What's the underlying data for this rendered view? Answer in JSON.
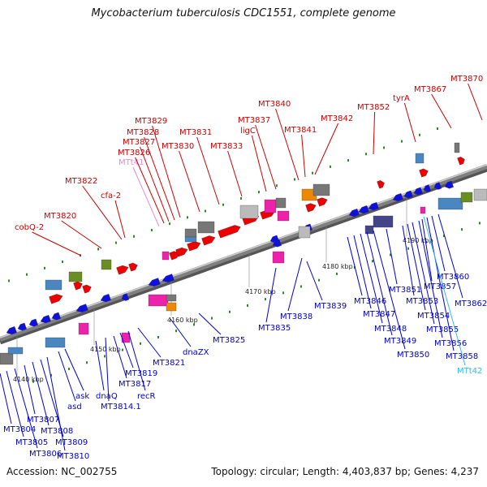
{
  "title": "Mycobacterium tuberculosis CDC1551, complete genome",
  "footer": {
    "accession": "Accession: NC_002755",
    "summary": "Topology: circular; Length: 4,403,837 bp; Genes: 4,237"
  },
  "colors": {
    "backbone": "#808080",
    "label_top": "#cc0000",
    "label_bottom": "#0000cc",
    "trna_top": "#e68ad8",
    "trna_bottom": "#33bbee"
  },
  "ticks": [
    "4140 kbp",
    "4150 kbp",
    "4160 kbp",
    "4170 kbp",
    "4180 kbp",
    "4190 kbp"
  ],
  "labels_top": [
    "cobQ-2",
    "MT3820",
    "MT3822",
    "cfa-2",
    "MTt41",
    "MT3826",
    "MT3827",
    "MT3828",
    "MT3829",
    "MT3830",
    "MT3831",
    "MT3833",
    "ligC",
    "MT3837",
    "MT3840",
    "MT3841",
    "MT3842",
    "MT3852",
    "tyrA",
    "MT3867",
    "MT3870"
  ],
  "labels_bottom": [
    "MT3804",
    "MT3805",
    "MT3806",
    "MT3807",
    "MT3808",
    "MT3809",
    "MT3810",
    "asd",
    "ask",
    "dnaQ",
    "MT3814.1",
    "MT3817",
    "MT3819",
    "recR",
    "MT3821",
    "dnaZX",
    "MT3825",
    "MT3835",
    "MT3838",
    "MT3839",
    "MT3846",
    "MT3847",
    "MT3848",
    "MT3849",
    "MT3850",
    "MT3851",
    "MT3853",
    "MT3854",
    "MT3855",
    "MT3856",
    "MT3857",
    "MT3858",
    "MT3860",
    "MT3862",
    "MTt42"
  ]
}
